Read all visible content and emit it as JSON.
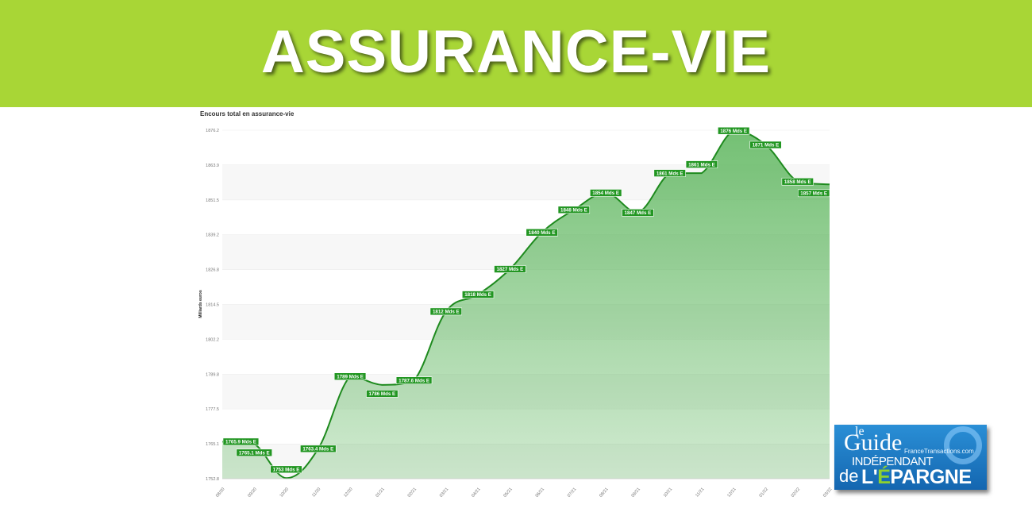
{
  "banner": {
    "title": "ASSURANCE-VIE",
    "color": "#a8d636"
  },
  "logo": {
    "line1": "le",
    "line2": "Guide",
    "line3": "INDÉPENDANT",
    "line4": "de",
    "line5a": "L'",
    "line5b": "É",
    "line5c": "PARGNE",
    "site": "FranceTransactions.com"
  },
  "chart_data": {
    "type": "area",
    "title": "Encours total en assurance-vie",
    "ylabel": "Milliards euros",
    "xlabel": "",
    "categories": [
      "08/20",
      "09/20",
      "10/20",
      "11/20",
      "12/20",
      "01/21",
      "02/21",
      "03/21",
      "04/21",
      "05/21",
      "06/21",
      "07/21",
      "08/21",
      "09/21",
      "10/21",
      "11/21",
      "12/21",
      "01/22",
      "02/22",
      "03/22"
    ],
    "values": [
      1765.9,
      1765.1,
      1753,
      1763.4,
      1789,
      1786,
      1787.6,
      1812,
      1818,
      1827,
      1840,
      1848,
      1854,
      1847,
      1861,
      1861,
      1876,
      1871,
      1858,
      1857
    ],
    "data_labels": [
      "1765.9 Mds E",
      "1765.1 Mds E",
      "1753 Mds E",
      "1763.4 Mds E",
      "1789 Mds E",
      "1786 Mds E",
      "1787.6 Mds E",
      "1812 Mds E",
      "1818 Mds E",
      "1827 Mds E",
      "1840 Mds E",
      "1848 Mds E",
      "1854 Mds E",
      "1847 Mds E",
      "1861 Mds E",
      "1861 Mds E",
      "1876 Mds E",
      "1871 Mds E",
      "1858 Mds E",
      "1857 Mds E"
    ],
    "yticks": [
      "1752.8",
      "1765.1",
      "1777.5",
      "1789.8",
      "1802.2",
      "1814.5",
      "1826.8",
      "1839.2",
      "1851.5",
      "1863.9",
      "1876.2"
    ],
    "ylim": [
      1752.8,
      1876.2
    ],
    "grid": true,
    "line_color": "#1e8a1e",
    "fill_color": "#5bb55b",
    "label_bg": "#229622"
  }
}
